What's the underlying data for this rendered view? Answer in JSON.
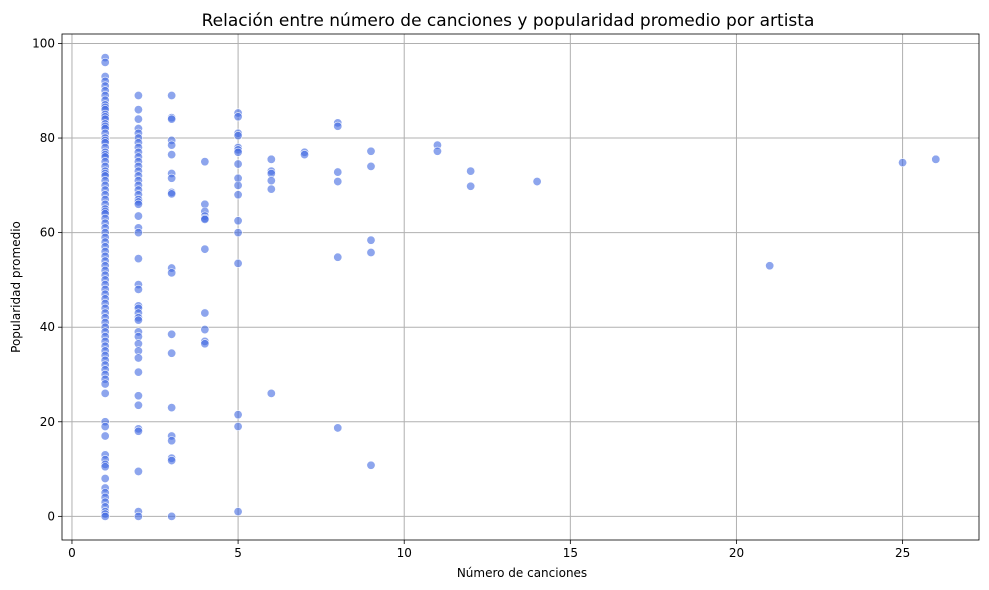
{
  "chart_data": {
    "type": "scatter",
    "title": "Relación entre número de canciones y popularidad promedio por artista",
    "xlabel": "Número de canciones",
    "ylabel": "Popularidad promedio",
    "xlim": [
      -0.3,
      27.3
    ],
    "ylim": [
      -5,
      102
    ],
    "xticks": [
      0,
      5,
      10,
      15,
      20,
      25
    ],
    "yticks": [
      0,
      20,
      40,
      60,
      80,
      100
    ],
    "grid": true,
    "point_color": "#4169e1",
    "points": [
      [
        1,
        97
      ],
      [
        1,
        96
      ],
      [
        1,
        93
      ],
      [
        1,
        92
      ],
      [
        1,
        91
      ],
      [
        1,
        90
      ],
      [
        1,
        89
      ],
      [
        1,
        88
      ],
      [
        1,
        87
      ],
      [
        1,
        86.5
      ],
      [
        1,
        86
      ],
      [
        1,
        85
      ],
      [
        1,
        84.5
      ],
      [
        1,
        84
      ],
      [
        1,
        83
      ],
      [
        1,
        82.5
      ],
      [
        1,
        82
      ],
      [
        1,
        81
      ],
      [
        1,
        80
      ],
      [
        1,
        79.5
      ],
      [
        1,
        79
      ],
      [
        1,
        78
      ],
      [
        1,
        77
      ],
      [
        1,
        76.5
      ],
      [
        1,
        76
      ],
      [
        1,
        75
      ],
      [
        1,
        74
      ],
      [
        1,
        73
      ],
      [
        1,
        72.5
      ],
      [
        1,
        72
      ],
      [
        1,
        71
      ],
      [
        1,
        70
      ],
      [
        1,
        69
      ],
      [
        1,
        68
      ],
      [
        1,
        67
      ],
      [
        1,
        66
      ],
      [
        1,
        65
      ],
      [
        1,
        64.5
      ],
      [
        1,
        64
      ],
      [
        1,
        63
      ],
      [
        1,
        62
      ],
      [
        1,
        61
      ],
      [
        1,
        60
      ],
      [
        1,
        59
      ],
      [
        1,
        58
      ],
      [
        1,
        57
      ],
      [
        1,
        56
      ],
      [
        1,
        55
      ],
      [
        1,
        54
      ],
      [
        1,
        53
      ],
      [
        1,
        52
      ],
      [
        1,
        51
      ],
      [
        1,
        50
      ],
      [
        1,
        49
      ],
      [
        1,
        48
      ],
      [
        1,
        47
      ],
      [
        1,
        46
      ],
      [
        1,
        45
      ],
      [
        1,
        44
      ],
      [
        1,
        43
      ],
      [
        1,
        42
      ],
      [
        1,
        41
      ],
      [
        1,
        40
      ],
      [
        1,
        39
      ],
      [
        1,
        38
      ],
      [
        1,
        37
      ],
      [
        1,
        36
      ],
      [
        1,
        35
      ],
      [
        1,
        34
      ],
      [
        1,
        33
      ],
      [
        1,
        32
      ],
      [
        1,
        31
      ],
      [
        1,
        30
      ],
      [
        1,
        29
      ],
      [
        1,
        28
      ],
      [
        1,
        26
      ],
      [
        1,
        20
      ],
      [
        1,
        19
      ],
      [
        1,
        17
      ],
      [
        1,
        13
      ],
      [
        1,
        12
      ],
      [
        1,
        11
      ],
      [
        1,
        10.5
      ],
      [
        1,
        8
      ],
      [
        1,
        6
      ],
      [
        1,
        5
      ],
      [
        1,
        4
      ],
      [
        1,
        3
      ],
      [
        1,
        2
      ],
      [
        1,
        1
      ],
      [
        1,
        0.5
      ],
      [
        1,
        0
      ],
      [
        2,
        89
      ],
      [
        2,
        86
      ],
      [
        2,
        84
      ],
      [
        2,
        82
      ],
      [
        2,
        81
      ],
      [
        2,
        80
      ],
      [
        2,
        79
      ],
      [
        2,
        78
      ],
      [
        2,
        77
      ],
      [
        2,
        76
      ],
      [
        2,
        75
      ],
      [
        2,
        74
      ],
      [
        2,
        73
      ],
      [
        2,
        72
      ],
      [
        2,
        71
      ],
      [
        2,
        70
      ],
      [
        2,
        69
      ],
      [
        2,
        68
      ],
      [
        2,
        67
      ],
      [
        2,
        66.5
      ],
      [
        2,
        66
      ],
      [
        2,
        63.5
      ],
      [
        2,
        61
      ],
      [
        2,
        60
      ],
      [
        2,
        54.5
      ],
      [
        2,
        49
      ],
      [
        2,
        48
      ],
      [
        2,
        44.5
      ],
      [
        2,
        44
      ],
      [
        2,
        43
      ],
      [
        2,
        42
      ],
      [
        2,
        41.5
      ],
      [
        2,
        39
      ],
      [
        2,
        38
      ],
      [
        2,
        36.5
      ],
      [
        2,
        35
      ],
      [
        2,
        33.5
      ],
      [
        2,
        30.5
      ],
      [
        2,
        25.5
      ],
      [
        2,
        23.5
      ],
      [
        2,
        18.5
      ],
      [
        2,
        18
      ],
      [
        2,
        9.5
      ],
      [
        2,
        1
      ],
      [
        2,
        0
      ],
      [
        3,
        89
      ],
      [
        3,
        84.3
      ],
      [
        3,
        84
      ],
      [
        3,
        79.5
      ],
      [
        3,
        78.5
      ],
      [
        3,
        76.5
      ],
      [
        3,
        72.5
      ],
      [
        3,
        71.5
      ],
      [
        3,
        68.5
      ],
      [
        3,
        68.2
      ],
      [
        3,
        52.5
      ],
      [
        3,
        51.5
      ],
      [
        3,
        38.5
      ],
      [
        3,
        34.5
      ],
      [
        3,
        23
      ],
      [
        3,
        17
      ],
      [
        3,
        16
      ],
      [
        3,
        12.3
      ],
      [
        3,
        11.8
      ],
      [
        3,
        0
      ],
      [
        4,
        75
      ],
      [
        4,
        66
      ],
      [
        4,
        64.5
      ],
      [
        4,
        63.5
      ],
      [
        4,
        63
      ],
      [
        4,
        62.8
      ],
      [
        4,
        56.5
      ],
      [
        4,
        43
      ],
      [
        4,
        39.5
      ],
      [
        4,
        37
      ],
      [
        4,
        36.5
      ],
      [
        5,
        85.3
      ],
      [
        5,
        84.5
      ],
      [
        5,
        81
      ],
      [
        5,
        80.5
      ],
      [
        5,
        78
      ],
      [
        5,
        77.5
      ],
      [
        5,
        77
      ],
      [
        5,
        74.5
      ],
      [
        5,
        71.5
      ],
      [
        5,
        70
      ],
      [
        5,
        68
      ],
      [
        5,
        62.5
      ],
      [
        5,
        60
      ],
      [
        5,
        53.5
      ],
      [
        5,
        21.5
      ],
      [
        5,
        19
      ],
      [
        5,
        1
      ],
      [
        6,
        75.5
      ],
      [
        6,
        73
      ],
      [
        6,
        72.5
      ],
      [
        6,
        71
      ],
      [
        6,
        69.2
      ],
      [
        6,
        26
      ],
      [
        7,
        77
      ],
      [
        7,
        76.5
      ],
      [
        8,
        83.2
      ],
      [
        8,
        82.5
      ],
      [
        8,
        72.8
      ],
      [
        8,
        70.8
      ],
      [
        8,
        54.8
      ],
      [
        8,
        18.7
      ],
      [
        9,
        77.2
      ],
      [
        9,
        74
      ],
      [
        9,
        58.4
      ],
      [
        9,
        55.8
      ],
      [
        9,
        10.8
      ],
      [
        11,
        78.5
      ],
      [
        11,
        77.2
      ],
      [
        12,
        73
      ],
      [
        12,
        69.8
      ],
      [
        14,
        70.8
      ],
      [
        21,
        53
      ],
      [
        25,
        74.8
      ],
      [
        26,
        75.5
      ]
    ]
  }
}
